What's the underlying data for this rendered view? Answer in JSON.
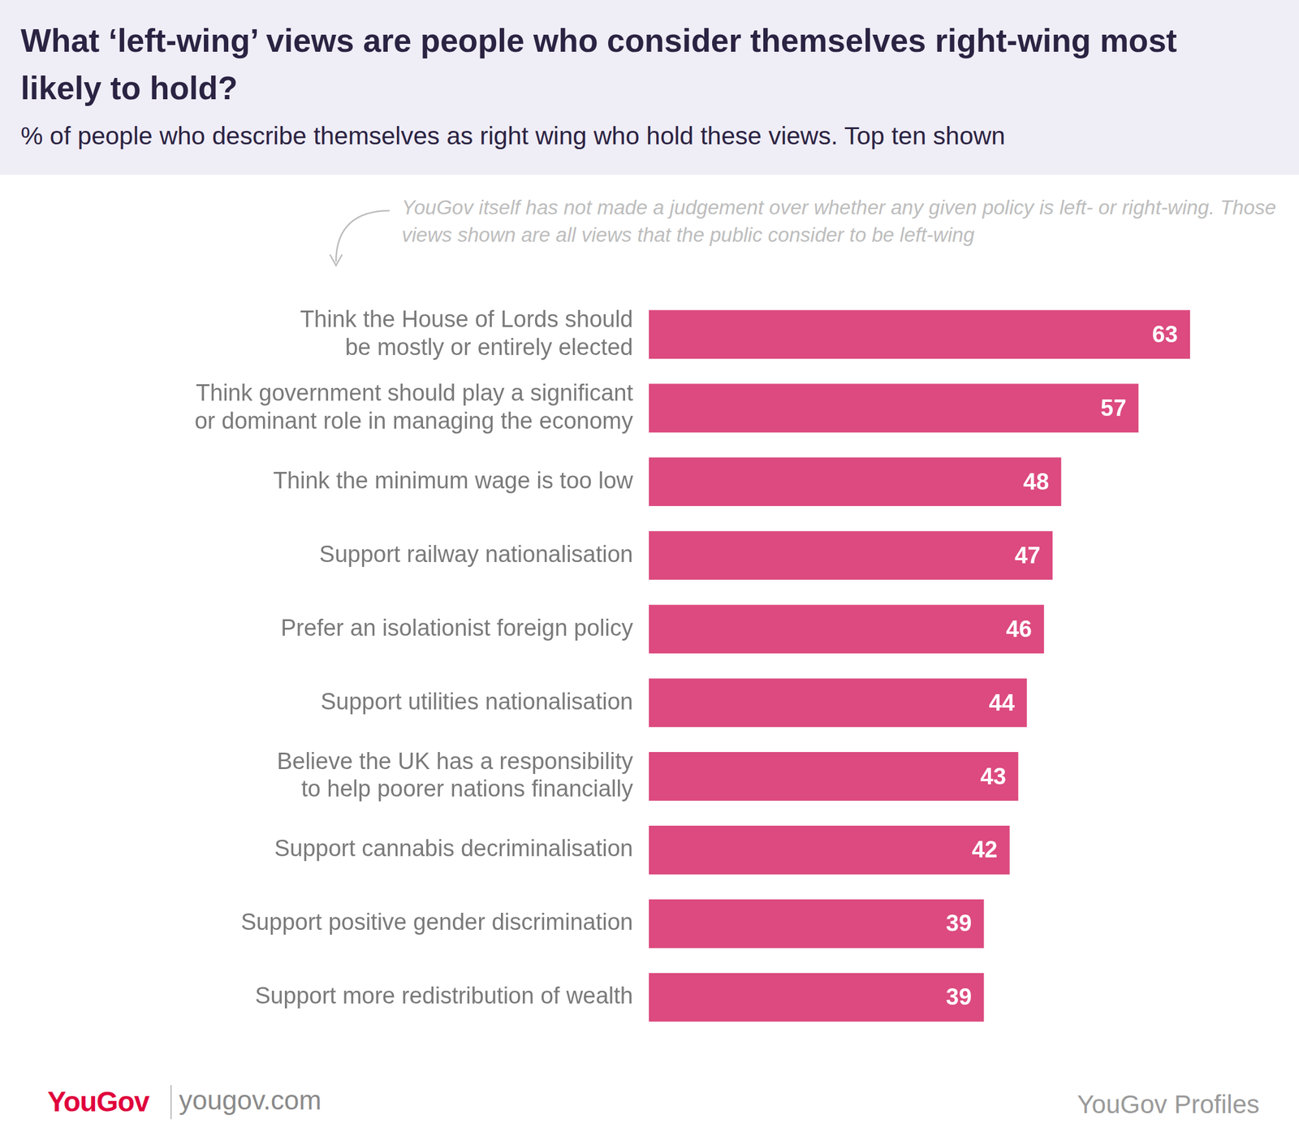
{
  "chart_data": {
    "type": "bar",
    "orientation": "horizontal",
    "title": "What ‘left-wing’ views are people who consider themselves right-wing most likely to hold?",
    "subtitle": "% of people who describe themselves as right wing who hold these views. Top ten shown",
    "annotations": [
      "YouGov itself has not made a judgement over whether any given policy is left- or right-wing. Those views shown are all views that the public consider to be left-wing"
    ],
    "source": {
      "logo": "YouGov",
      "url": "yougov.com",
      "product": "YouGov Profiles"
    },
    "categories": [
      "Think the House of Lords should be mostly or entirely elected",
      "Think government should play a significant or dominant role in managing the economy",
      "Think the minimum wage is too low",
      "Support railway nationalisation",
      "Prefer an isolationist foreign policy",
      "Support utilities nationalisation",
      "Believe the UK has a responsibility to help poorer nations financially",
      "Support cannabis decriminalisation",
      "Support positive gender discrimination",
      "Support more redistribution of wealth"
    ],
    "values": [
      63,
      57,
      48,
      47,
      46,
      44,
      43,
      42,
      39,
      39
    ],
    "color": "#dc4a7f",
    "xlim": [
      0,
      63
    ],
    "grid": false,
    "data_labels": true,
    "tick_labels": "y"
  }
}
